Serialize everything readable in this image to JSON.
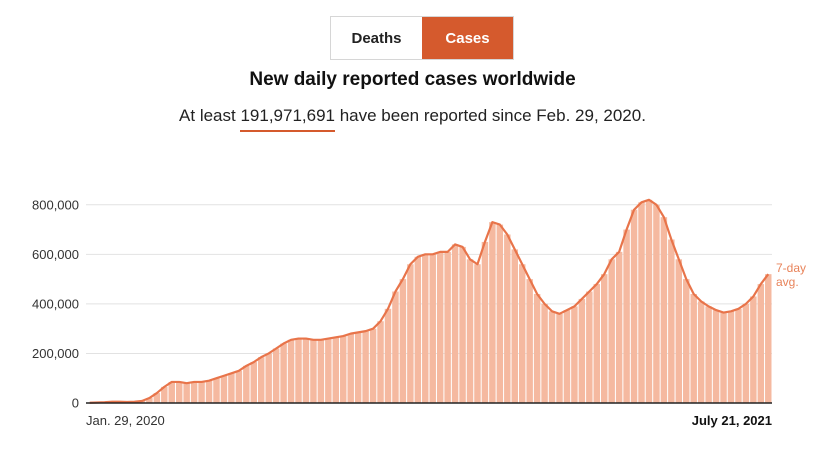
{
  "toggle": {
    "items": [
      {
        "label": "Deaths",
        "selected": false
      },
      {
        "label": "Cases",
        "selected": true
      }
    ]
  },
  "header": {
    "title": "New daily reported cases worldwide",
    "subtitle_prefix": "At least ",
    "total": "191,971,691",
    "subtitle_suffix": " have been reported since Feb. 29, 2020."
  },
  "colors": {
    "accent": "#d55a2d",
    "bar": "#f5b9a0",
    "line": "#e8744a",
    "grid": "#e2e2e2"
  },
  "chart_data": {
    "type": "bar",
    "x_start": "Jan. 29, 2020",
    "x_end": "July 21, 2021",
    "xlabel": "",
    "ylabel": "",
    "ylim": [
      0,
      900000
    ],
    "yticks": [
      0,
      200000,
      400000,
      600000,
      800000
    ],
    "ytick_labels": [
      "0",
      "200,000",
      "400,000",
      "600,000",
      "800,000"
    ],
    "grid": true,
    "legend": "none",
    "series": [
      {
        "kind": "bars",
        "note": "weekly average of daily reported cases, read from chart",
        "values": [
          1000,
          2000,
          3000,
          5000,
          5000,
          4000,
          5000,
          8000,
          20000,
          40000,
          65000,
          85000,
          85000,
          80000,
          85000,
          85000,
          90000,
          100000,
          110000,
          120000,
          130000,
          150000,
          165000,
          185000,
          200000,
          220000,
          240000,
          255000,
          260000,
          260000,
          255000,
          255000,
          260000,
          265000,
          270000,
          280000,
          285000,
          290000,
          300000,
          330000,
          380000,
          450000,
          500000,
          560000,
          590000,
          600000,
          600000,
          610000,
          610000,
          640000,
          630000,
          580000,
          560000,
          650000,
          730000,
          720000,
          680000,
          620000,
          560000,
          500000,
          440000,
          400000,
          370000,
          360000,
          375000,
          390000,
          420000,
          450000,
          480000,
          520000,
          580000,
          610000,
          700000,
          780000,
          810000,
          820000,
          800000,
          750000,
          660000,
          580000,
          500000,
          440000,
          410000,
          390000,
          375000,
          365000,
          370000,
          380000,
          400000,
          430000,
          480000,
          520000
        ]
      },
      {
        "kind": "line",
        "name": "7-day avg.",
        "values": [
          1000,
          2000,
          3000,
          5000,
          5000,
          4000,
          5000,
          8000,
          20000,
          40000,
          65000,
          85000,
          85000,
          80000,
          85000,
          85000,
          90000,
          100000,
          110000,
          120000,
          130000,
          150000,
          165000,
          185000,
          200000,
          220000,
          240000,
          255000,
          260000,
          260000,
          255000,
          255000,
          260000,
          265000,
          270000,
          280000,
          285000,
          290000,
          300000,
          330000,
          380000,
          450000,
          500000,
          560000,
          590000,
          600000,
          600000,
          610000,
          610000,
          640000,
          630000,
          580000,
          560000,
          650000,
          730000,
          720000,
          680000,
          620000,
          560000,
          500000,
          440000,
          400000,
          370000,
          360000,
          375000,
          390000,
          420000,
          450000,
          480000,
          520000,
          580000,
          610000,
          700000,
          780000,
          810000,
          820000,
          800000,
          750000,
          660000,
          580000,
          500000,
          440000,
          410000,
          390000,
          375000,
          365000,
          370000,
          380000,
          400000,
          430000,
          480000,
          520000
        ]
      }
    ],
    "annotation_line1": "7-day",
    "annotation_line2": "avg."
  }
}
